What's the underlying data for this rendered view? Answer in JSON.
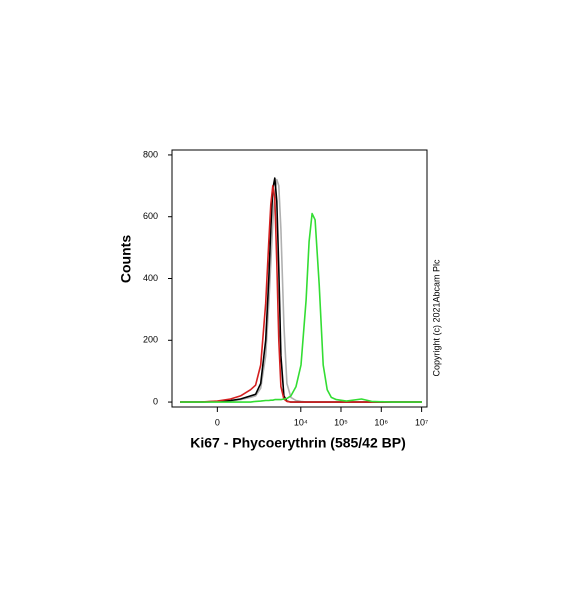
{
  "chart_data": {
    "type": "line",
    "ylabel": "Counts",
    "xlabel": "Ki67 - Phycoerythrin  (585/42 BP)",
    "annotation": "Copyright (c) 2021Abcam Plc",
    "xscale": "symlog",
    "linthresh": 86,
    "xlim": [
      -1060,
      13600000
    ],
    "ylim": [
      -16,
      816
    ],
    "xticks": [
      0,
      {
        "value": 10000,
        "label": "10⁴"
      },
      {
        "value": 100000,
        "label": "10⁵"
      },
      {
        "value": 1000000,
        "label": "10⁶"
      },
      {
        "value": 10000000,
        "label": "10⁷"
      }
    ],
    "yticks": [
      0,
      200,
      400,
      600,
      800
    ],
    "x": [
      -637,
      -143,
      0,
      96,
      237,
      489,
      680,
      937,
      1277,
      1534,
      1731,
      1953,
      2202,
      2481,
      2795,
      3146,
      3756,
      4480,
      5659,
      7577,
      10140,
      13540,
      16120,
      19170,
      22790,
      28720,
      36180,
      45570,
      57390,
      76540,
      136200,
      323100,
      574700,
      1817000,
      10200000
    ],
    "series": [
      {
        "color": "#b0b0b0",
        "values": [
          0,
          0,
          1,
          3,
          8,
          15,
          20,
          45,
          150,
          320,
          450,
          580,
          680,
          720,
          700,
          560,
          250,
          60,
          15,
          5,
          2,
          0,
          0,
          0,
          0,
          0,
          0,
          0,
          0,
          0,
          0,
          0,
          0,
          0,
          0
        ]
      },
      {
        "color": "#000000",
        "values": [
          0,
          0,
          2,
          5,
          10,
          20,
          25,
          60,
          200,
          400,
          560,
          690,
          725,
          650,
          430,
          150,
          20,
          3,
          0,
          0,
          0,
          0,
          0,
          0,
          0,
          0,
          0,
          0,
          0,
          0,
          0,
          0,
          0,
          0,
          0
        ]
      },
      {
        "color": "#d42020",
        "values": [
          0,
          0,
          3,
          10,
          20,
          40,
          55,
          120,
          320,
          520,
          640,
          700,
          660,
          450,
          200,
          50,
          10,
          2,
          0,
          0,
          0,
          0,
          0,
          0,
          0,
          0,
          0,
          0,
          0,
          0,
          0,
          0,
          0,
          0,
          0
        ]
      },
      {
        "color": "#33dd33",
        "values": [
          0,
          0,
          0,
          0,
          0,
          0,
          2,
          3,
          5,
          5,
          6,
          6,
          8,
          8,
          8,
          8,
          10,
          12,
          20,
          50,
          120,
          330,
          520,
          610,
          590,
          380,
          120,
          40,
          15,
          8,
          3,
          10,
          2,
          0,
          0
        ]
      }
    ]
  }
}
